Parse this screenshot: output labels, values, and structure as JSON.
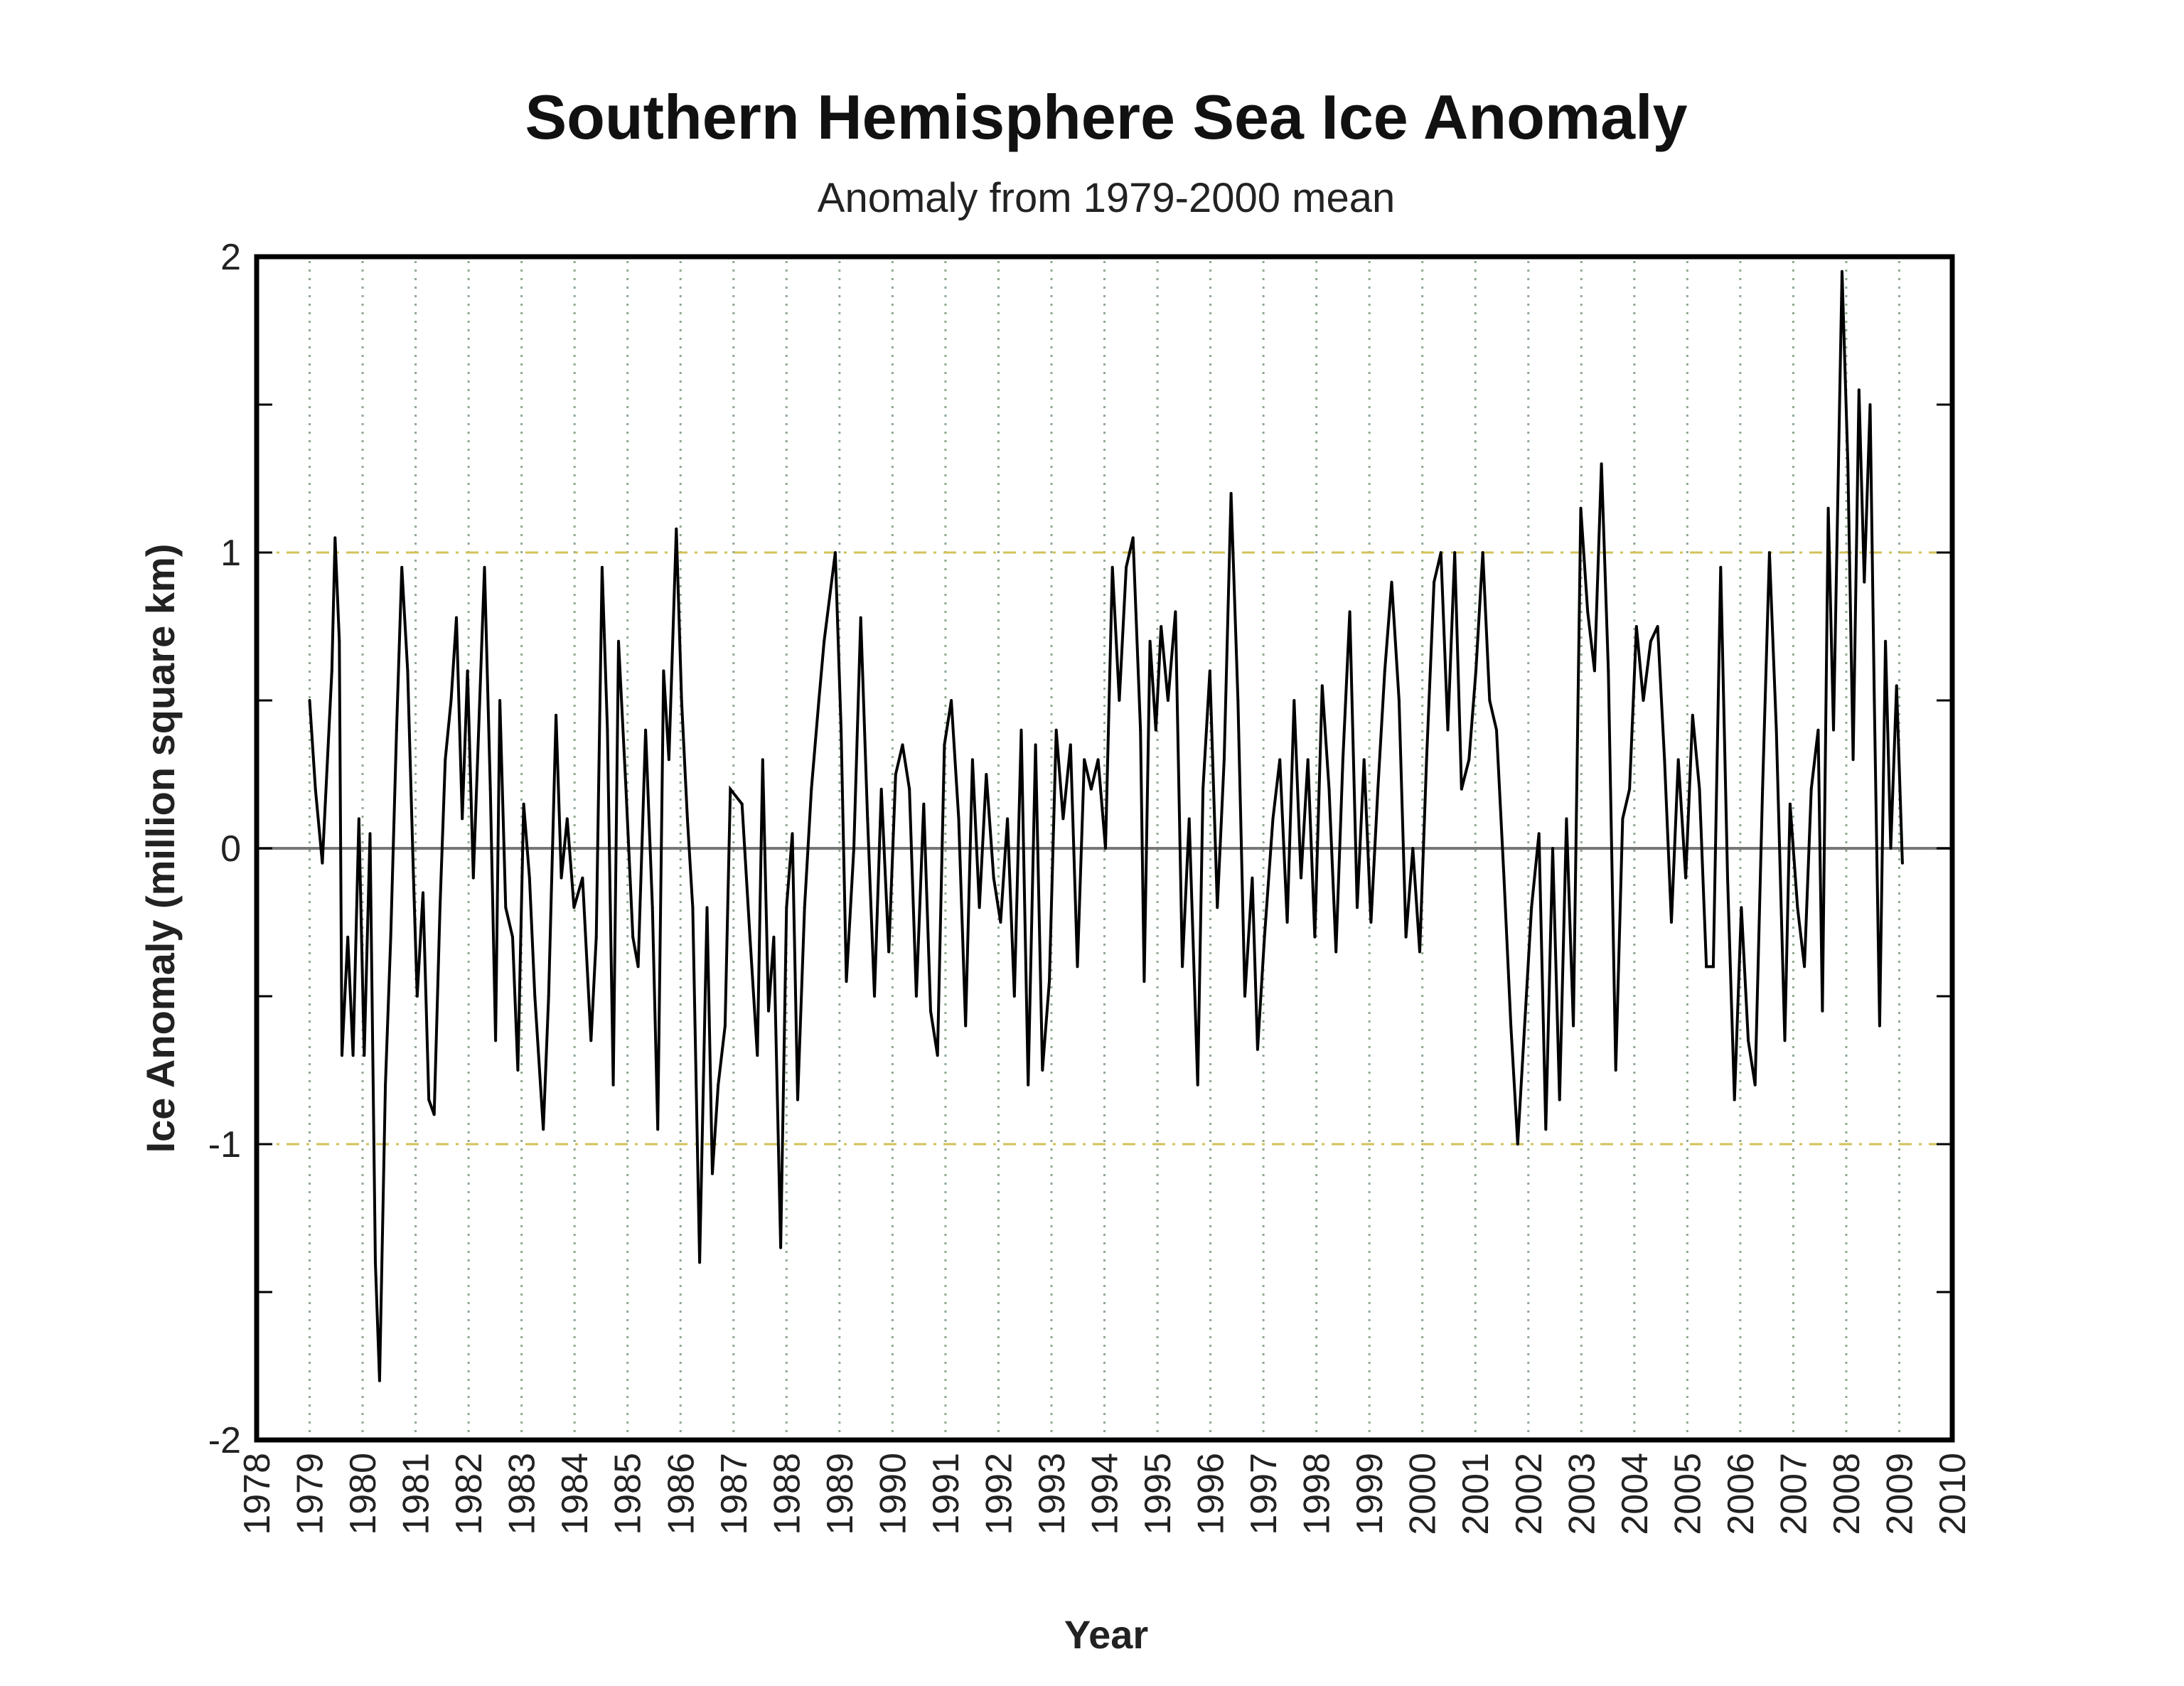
{
  "chart_data": {
    "type": "line",
    "title": "Southern Hemisphere Sea Ice Anomaly",
    "subtitle": "Anomaly from 1979-2000 mean",
    "xlabel": "Year",
    "ylabel": "Ice Anomaly (million square km)",
    "xlim": [
      1978,
      2010
    ],
    "ylim": [
      -2,
      2
    ],
    "x_ticks": [
      "1978",
      "1979",
      "1980",
      "1981",
      "1982",
      "1983",
      "1984",
      "1985",
      "1986",
      "1987",
      "1988",
      "1989",
      "1990",
      "1991",
      "1992",
      "1993",
      "1994",
      "1995",
      "1996",
      "1997",
      "1998",
      "1999",
      "2000",
      "2001",
      "2002",
      "2003",
      "2004",
      "2005",
      "2006",
      "2007",
      "2008",
      "2009",
      "2010"
    ],
    "y_ticks": [
      "-2",
      "-1",
      "0",
      "1",
      "2"
    ],
    "grid": "vertical dotted at each year; dashed reference lines at -1 and 1; solid line at 0",
    "colors": {
      "series": "#000000",
      "year_grid": "#8fa88f",
      "reference_lines": "#d2c25a",
      "zero_line": "#777777",
      "frame": "#000000"
    },
    "series": [
      {
        "points": [
          [
            1979.0,
            0.5
          ],
          [
            1979.11,
            0.2
          ],
          [
            1979.24,
            -0.05
          ],
          [
            1979.42,
            0.6
          ],
          [
            1979.48,
            1.05
          ],
          [
            1979.56,
            0.7
          ],
          [
            1979.61,
            -0.7
          ],
          [
            1979.72,
            -0.3
          ],
          [
            1979.82,
            -0.7
          ],
          [
            1979.93,
            0.1
          ],
          [
            1980.03,
            -0.7
          ],
          [
            1980.14,
            0.05
          ],
          [
            1980.24,
            -1.4
          ],
          [
            1980.32,
            -1.8
          ],
          [
            1980.43,
            -0.8
          ],
          [
            1980.53,
            -0.3
          ],
          [
            1980.64,
            0.4
          ],
          [
            1980.74,
            0.95
          ],
          [
            1980.85,
            0.6
          ],
          [
            1980.96,
            -0.1
          ],
          [
            1981.03,
            -0.5
          ],
          [
            1981.14,
            -0.15
          ],
          [
            1981.25,
            -0.85
          ],
          [
            1981.35,
            -0.9
          ],
          [
            1981.46,
            -0.2
          ],
          [
            1981.56,
            0.3
          ],
          [
            1981.67,
            0.5
          ],
          [
            1981.77,
            0.78
          ],
          [
            1981.88,
            0.1
          ],
          [
            1981.98,
            0.6
          ],
          [
            1982.09,
            -0.1
          ],
          [
            1982.3,
            0.95
          ],
          [
            1982.41,
            0.2
          ],
          [
            1982.51,
            -0.65
          ],
          [
            1982.59,
            0.5
          ],
          [
            1982.7,
            -0.2
          ],
          [
            1982.83,
            -0.3
          ],
          [
            1982.93,
            -0.75
          ],
          [
            1983.04,
            0.15
          ],
          [
            1983.15,
            -0.1
          ],
          [
            1983.25,
            -0.5
          ],
          [
            1983.41,
            -0.95
          ],
          [
            1983.51,
            -0.5
          ],
          [
            1983.65,
            0.45
          ],
          [
            1983.75,
            -0.1
          ],
          [
            1983.86,
            0.1
          ],
          [
            1983.99,
            -0.2
          ],
          [
            1984.15,
            -0.1
          ],
          [
            1984.31,
            -0.65
          ],
          [
            1984.41,
            -0.3
          ],
          [
            1984.52,
            0.95
          ],
          [
            1984.62,
            0.4
          ],
          [
            1984.73,
            -0.8
          ],
          [
            1984.83,
            0.7
          ],
          [
            1984.97,
            0.2
          ],
          [
            1985.1,
            -0.3
          ],
          [
            1985.2,
            -0.4
          ],
          [
            1985.34,
            0.4
          ],
          [
            1985.47,
            -0.2
          ],
          [
            1985.57,
            -0.95
          ],
          [
            1985.68,
            0.6
          ],
          [
            1985.78,
            0.3
          ],
          [
            1985.92,
            1.08
          ],
          [
            1986.02,
            0.5
          ],
          [
            1986.13,
            0.1
          ],
          [
            1986.23,
            -0.2
          ],
          [
            1986.36,
            -1.4
          ],
          [
            1986.5,
            -0.2
          ],
          [
            1986.6,
            -1.1
          ],
          [
            1986.71,
            -0.8
          ],
          [
            1986.84,
            -0.6
          ],
          [
            1986.94,
            0.2
          ],
          [
            1987.16,
            0.15
          ],
          [
            1987.31,
            -0.3
          ],
          [
            1987.45,
            -0.7
          ],
          [
            1987.55,
            0.3
          ],
          [
            1987.66,
            -0.55
          ],
          [
            1987.76,
            -0.3
          ],
          [
            1987.89,
            -1.35
          ],
          [
            1988.0,
            -0.2
          ],
          [
            1988.11,
            0.05
          ],
          [
            1988.21,
            -0.85
          ],
          [
            1988.34,
            -0.2
          ],
          [
            1988.47,
            0.2
          ],
          [
            1988.61,
            0.5
          ],
          [
            1988.71,
            0.7
          ],
          [
            1988.92,
            1.0
          ],
          [
            1989.03,
            0.4
          ],
          [
            1989.13,
            -0.45
          ],
          [
            1989.27,
            0.0
          ],
          [
            1989.4,
            0.78
          ],
          [
            1989.53,
            0.1
          ],
          [
            1989.66,
            -0.5
          ],
          [
            1989.79,
            0.2
          ],
          [
            1989.93,
            -0.35
          ],
          [
            1990.06,
            0.25
          ],
          [
            1990.19,
            0.35
          ],
          [
            1990.32,
            0.2
          ],
          [
            1990.45,
            -0.5
          ],
          [
            1990.59,
            0.15
          ],
          [
            1990.72,
            -0.55
          ],
          [
            1990.85,
            -0.7
          ],
          [
            1990.98,
            0.35
          ],
          [
            1991.11,
            0.5
          ],
          [
            1991.25,
            0.1
          ],
          [
            1991.38,
            -0.6
          ],
          [
            1991.51,
            0.3
          ],
          [
            1991.64,
            -0.2
          ],
          [
            1991.77,
            0.25
          ],
          [
            1991.91,
            -0.1
          ],
          [
            1992.04,
            -0.25
          ],
          [
            1992.17,
            0.1
          ],
          [
            1992.3,
            -0.5
          ],
          [
            1992.43,
            0.4
          ],
          [
            1992.56,
            -0.8
          ],
          [
            1992.7,
            0.35
          ],
          [
            1992.83,
            -0.75
          ],
          [
            1992.96,
            -0.45
          ],
          [
            1993.09,
            0.4
          ],
          [
            1993.22,
            0.1
          ],
          [
            1993.36,
            0.35
          ],
          [
            1993.49,
            -0.4
          ],
          [
            1993.62,
            0.3
          ],
          [
            1993.75,
            0.2
          ],
          [
            1993.88,
            0.3
          ],
          [
            1994.02,
            0.0
          ],
          [
            1994.15,
            0.95
          ],
          [
            1994.28,
            0.5
          ],
          [
            1994.41,
            0.95
          ],
          [
            1994.54,
            1.05
          ],
          [
            1994.68,
            0.4
          ],
          [
            1994.75,
            -0.45
          ],
          [
            1994.86,
            0.7
          ],
          [
            1994.97,
            0.4
          ],
          [
            1995.07,
            0.75
          ],
          [
            1995.2,
            0.5
          ],
          [
            1995.34,
            0.8
          ],
          [
            1995.47,
            -0.4
          ],
          [
            1995.6,
            0.1
          ],
          [
            1995.76,
            -0.8
          ],
          [
            1995.86,
            0.2
          ],
          [
            1995.99,
            0.6
          ],
          [
            1996.13,
            -0.2
          ],
          [
            1996.26,
            0.3
          ],
          [
            1996.39,
            1.2
          ],
          [
            1996.52,
            0.5
          ],
          [
            1996.65,
            -0.5
          ],
          [
            1996.79,
            -0.1
          ],
          [
            1996.89,
            -0.68
          ],
          [
            1997.02,
            -0.3
          ],
          [
            1997.18,
            0.1
          ],
          [
            1997.31,
            0.3
          ],
          [
            1997.45,
            -0.25
          ],
          [
            1997.58,
            0.5
          ],
          [
            1997.71,
            -0.1
          ],
          [
            1997.84,
            0.3
          ],
          [
            1997.97,
            -0.3
          ],
          [
            1998.11,
            0.55
          ],
          [
            1998.24,
            0.2
          ],
          [
            1998.37,
            -0.35
          ],
          [
            1998.5,
            0.3
          ],
          [
            1998.63,
            0.8
          ],
          [
            1998.77,
            -0.2
          ],
          [
            1998.9,
            0.3
          ],
          [
            1999.03,
            -0.25
          ],
          [
            1999.16,
            0.2
          ],
          [
            1999.29,
            0.6
          ],
          [
            1999.42,
            0.9
          ],
          [
            1999.56,
            0.5
          ],
          [
            1999.69,
            -0.3
          ],
          [
            1999.82,
            0.0
          ],
          [
            1999.95,
            -0.35
          ],
          [
            2000.08,
            0.3
          ],
          [
            2000.22,
            0.9
          ],
          [
            2000.35,
            1.0
          ],
          [
            2000.48,
            0.4
          ],
          [
            2000.61,
            1.0
          ],
          [
            2000.74,
            0.2
          ],
          [
            2000.88,
            0.3
          ],
          [
            2001.01,
            0.6
          ],
          [
            2001.14,
            1.0
          ],
          [
            2001.27,
            0.5
          ],
          [
            2001.4,
            0.4
          ],
          [
            2001.54,
            -0.1
          ],
          [
            2001.67,
            -0.6
          ],
          [
            2001.8,
            -1.0
          ],
          [
            2001.93,
            -0.6
          ],
          [
            2002.06,
            -0.2
          ],
          [
            2002.2,
            0.05
          ],
          [
            2002.33,
            -0.95
          ],
          [
            2002.46,
            0.0
          ],
          [
            2002.59,
            -0.85
          ],
          [
            2002.72,
            0.1
          ],
          [
            2002.85,
            -0.6
          ],
          [
            2002.99,
            1.15
          ],
          [
            2003.12,
            0.8
          ],
          [
            2003.25,
            0.6
          ],
          [
            2003.38,
            1.3
          ],
          [
            2003.51,
            0.6
          ],
          [
            2003.65,
            -0.75
          ],
          [
            2003.78,
            0.1
          ],
          [
            2003.91,
            0.2
          ],
          [
            2004.04,
            0.75
          ],
          [
            2004.17,
            0.5
          ],
          [
            2004.31,
            0.7
          ],
          [
            2004.44,
            0.75
          ],
          [
            2004.57,
            0.3
          ],
          [
            2004.7,
            -0.25
          ],
          [
            2004.83,
            0.3
          ],
          [
            2004.97,
            -0.1
          ],
          [
            2005.1,
            0.45
          ],
          [
            2005.23,
            0.2
          ],
          [
            2005.36,
            -0.4
          ],
          [
            2005.49,
            -0.4
          ],
          [
            2005.63,
            0.95
          ],
          [
            2005.76,
            -0.1
          ],
          [
            2005.89,
            -0.85
          ],
          [
            2006.02,
            -0.2
          ],
          [
            2006.15,
            -0.65
          ],
          [
            2006.28,
            -0.8
          ],
          [
            2006.42,
            0.2
          ],
          [
            2006.55,
            1.0
          ],
          [
            2006.68,
            0.4
          ],
          [
            2006.84,
            -0.65
          ],
          [
            2006.94,
            0.15
          ],
          [
            2007.08,
            -0.2
          ],
          [
            2007.21,
            -0.4
          ],
          [
            2007.34,
            0.2
          ],
          [
            2007.47,
            0.4
          ],
          [
            2007.55,
            -0.55
          ],
          [
            2007.66,
            1.15
          ],
          [
            2007.76,
            0.4
          ],
          [
            2007.92,
            1.95
          ],
          [
            2008.03,
            1.3
          ],
          [
            2008.13,
            0.3
          ],
          [
            2008.24,
            1.55
          ],
          [
            2008.34,
            0.9
          ],
          [
            2008.45,
            1.5
          ],
          [
            2008.53,
            0.5
          ],
          [
            2008.63,
            -0.6
          ],
          [
            2008.74,
            0.7
          ],
          [
            2008.84,
            0.0
          ],
          [
            2008.95,
            0.55
          ],
          [
            2009.06,
            -0.05
          ]
        ]
      }
    ]
  }
}
